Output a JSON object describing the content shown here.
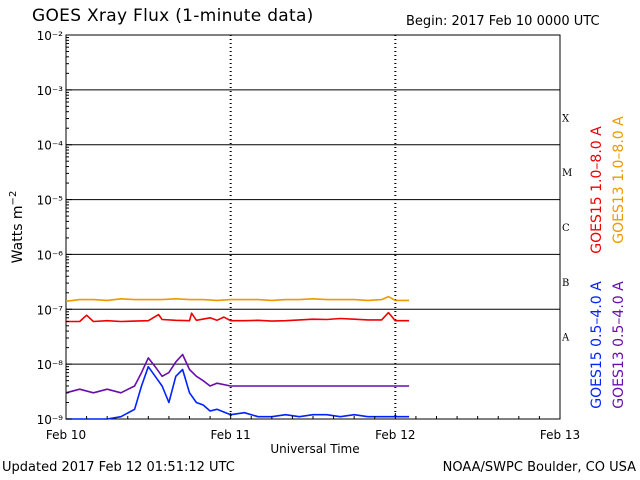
{
  "header": {
    "title": "GOES Xray Flux (1-minute data)",
    "begin_label": "Begin:  2017 Feb 10 0000 UTC"
  },
  "footer": {
    "updated": "Updated 2017 Feb 12 01:51:12 UTC",
    "credit": "NOAA/SWPC Boulder, CO USA"
  },
  "colors": {
    "goes15_long": "#ee0000",
    "goes13_long": "#ee9900",
    "goes15_short": "#0022ff",
    "goes13_short": "#6a0dad"
  },
  "chart_data": {
    "type": "line",
    "title": "GOES Xray Flux (1-minute data)",
    "xlabel": "Universal Time",
    "ylabel": "Watts m^-2",
    "y_scale": "log",
    "ylim": [
      1e-09,
      0.01
    ],
    "xlim_hours": [
      0,
      72
    ],
    "x_ticks": [
      {
        "hours": 0,
        "label": "Feb 10"
      },
      {
        "hours": 24,
        "label": "Feb 11"
      },
      {
        "hours": 48,
        "label": "Feb 12"
      },
      {
        "hours": 72,
        "label": "Feb 13"
      }
    ],
    "y_ticks": [
      {
        "exp": -9,
        "label": "10⁻⁹"
      },
      {
        "exp": -8,
        "label": "10⁻⁸"
      },
      {
        "exp": -7,
        "label": "10⁻⁷"
      },
      {
        "exp": -6,
        "label": "10⁻⁶"
      },
      {
        "exp": -5,
        "label": "10⁻⁵"
      },
      {
        "exp": -4,
        "label": "10⁻⁴"
      },
      {
        "exp": -3,
        "label": "10⁻³"
      },
      {
        "exp": -2,
        "label": "10⁻²"
      }
    ],
    "flare_classes": [
      {
        "label": "A",
        "exp": -7.5
      },
      {
        "label": "B",
        "exp": -6.5
      },
      {
        "label": "C",
        "exp": -5.5
      },
      {
        "label": "M",
        "exp": -4.5
      },
      {
        "label": "X",
        "exp": -3.5
      }
    ],
    "legend": [
      {
        "key": "goes15_long",
        "label": "GOES15 1.0–8.0 A"
      },
      {
        "key": "goes13_long",
        "label": "GOES13 1.0–8.0 A"
      },
      {
        "key": "goes15_short",
        "label": "GOES15 0.5–4.0 A"
      },
      {
        "key": "goes13_short",
        "label": "GOES13 0.5–4.0 A"
      }
    ],
    "series": [
      {
        "name": "GOES13 1.0-8.0 A",
        "color_key": "goes13_long",
        "hours": [
          0,
          2,
          4,
          6,
          8,
          10,
          12,
          14,
          16,
          18,
          20,
          22,
          24,
          26,
          28,
          30,
          32,
          34,
          36,
          38,
          40,
          42,
          44,
          46,
          47,
          48,
          50
        ],
        "values": [
          1.4e-07,
          1.5e-07,
          1.5e-07,
          1.45e-07,
          1.55e-07,
          1.5e-07,
          1.5e-07,
          1.5e-07,
          1.55e-07,
          1.5e-07,
          1.5e-07,
          1.45e-07,
          1.5e-07,
          1.5e-07,
          1.5e-07,
          1.45e-07,
          1.5e-07,
          1.5e-07,
          1.55e-07,
          1.5e-07,
          1.5e-07,
          1.5e-07,
          1.45e-07,
          1.5e-07,
          1.7e-07,
          1.45e-07,
          1.45e-07
        ]
      },
      {
        "name": "GOES15 1.0-8.0 A",
        "color_key": "goes15_long",
        "hours": [
          0,
          2,
          3,
          4,
          6,
          8,
          10,
          12,
          13.5,
          14,
          16,
          18,
          18.3,
          19,
          21,
          22,
          23,
          24,
          26,
          28,
          30,
          32,
          34,
          36,
          38,
          40,
          42,
          44,
          46,
          47,
          48,
          50
        ],
        "values": [
          6e-08,
          6e-08,
          7.8e-08,
          6e-08,
          6.2e-08,
          6e-08,
          6.1e-08,
          6.2e-08,
          8e-08,
          6.5e-08,
          6.3e-08,
          6.2e-08,
          8.5e-08,
          6.3e-08,
          7e-08,
          6.3e-08,
          7.2e-08,
          6.2e-08,
          6.2e-08,
          6.3e-08,
          6.1e-08,
          6.2e-08,
          6.4e-08,
          6.6e-08,
          6.5e-08,
          6.8e-08,
          6.6e-08,
          6.4e-08,
          6.4e-08,
          8.7e-08,
          6.2e-08,
          6.2e-08
        ]
      },
      {
        "name": "GOES13 0.5-4.0 A",
        "color_key": "goes13_short",
        "hours": [
          0,
          2,
          4,
          6,
          8,
          10,
          11,
          12,
          13,
          14,
          15,
          16,
          17,
          18,
          19,
          20,
          21,
          22,
          24,
          26,
          28,
          30,
          32,
          34,
          36,
          38,
          40,
          42,
          44,
          46,
          48,
          50
        ],
        "values": [
          3e-09,
          3.5e-09,
          3e-09,
          3.5e-09,
          3e-09,
          4e-09,
          7e-09,
          1.3e-08,
          9e-09,
          6e-09,
          7e-09,
          1.1e-08,
          1.5e-08,
          8e-09,
          6e-09,
          5e-09,
          4e-09,
          4.5e-09,
          4e-09,
          4e-09,
          4e-09,
          4e-09,
          4e-09,
          4e-09,
          4e-09,
          4e-09,
          4e-09,
          4e-09,
          4e-09,
          4e-09,
          4e-09,
          4e-09
        ]
      },
      {
        "name": "GOES15 0.5-4.0 A",
        "color_key": "goes15_short",
        "hours": [
          0,
          2,
          4,
          6,
          8,
          10,
          11,
          12,
          13,
          14,
          15,
          16,
          17,
          18,
          19,
          20,
          21,
          22,
          24,
          26,
          28,
          30,
          32,
          34,
          36,
          38,
          40,
          42,
          44,
          46,
          48,
          50
        ],
        "values": [
          1e-09,
          1e-09,
          1e-09,
          1e-09,
          1.1e-09,
          1.5e-09,
          4e-09,
          9e-09,
          6e-09,
          4e-09,
          2e-09,
          6e-09,
          8e-09,
          3e-09,
          2e-09,
          1.8e-09,
          1.4e-09,
          1.5e-09,
          1.2e-09,
          1.3e-09,
          1.1e-09,
          1.1e-09,
          1.2e-09,
          1.1e-09,
          1.2e-09,
          1.2e-09,
          1.1e-09,
          1.2e-09,
          1.1e-09,
          1.1e-09,
          1.1e-09,
          1.1e-09
        ]
      }
    ]
  }
}
